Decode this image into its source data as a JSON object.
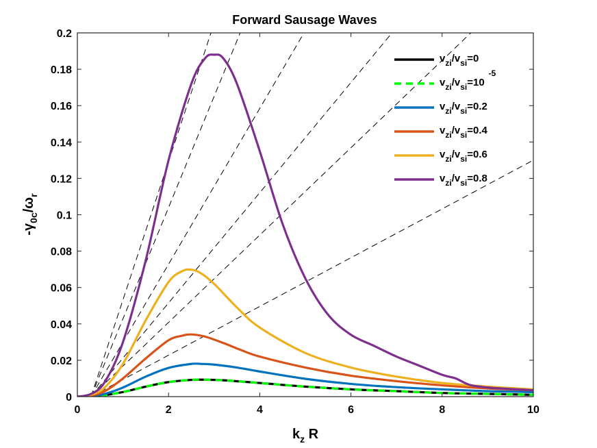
{
  "chart_data": {
    "type": "line",
    "title": "Forward Sausage Waves",
    "xlabel": "k_z R",
    "xlabel_main": "k",
    "xlabel_sub": "z",
    "xlabel_rest": " R",
    "ylabel": "-γ_0c/ω_r",
    "ylabel_main1": "-γ",
    "ylabel_sub1": "0c",
    "ylabel_main2": "/ω",
    "ylabel_sub2": "r",
    "xlim": [
      0,
      10
    ],
    "ylim": [
      0,
      0.2
    ],
    "xticks": [
      "0",
      "2",
      "4",
      "6",
      "8",
      "10"
    ],
    "xtick_values": [
      0,
      2,
      4,
      6,
      8,
      10
    ],
    "yticks": [
      "0",
      "0.02",
      "0.04",
      "0.06",
      "0.08",
      "0.1",
      "0.12",
      "0.14",
      "0.16",
      "0.18",
      "0.2"
    ],
    "ytick_values": [
      0,
      0.02,
      0.04,
      0.06,
      0.08,
      0.1,
      0.12,
      0.14,
      0.16,
      0.18,
      0.2
    ],
    "grid": false,
    "legend_position": "top-right",
    "series": [
      {
        "name": "v_zi/v_si=0",
        "leg_a": "v",
        "leg_b": "zi",
        "leg_c": "/v",
        "leg_d": "si",
        "leg_e": "=0",
        "leg_sup": "",
        "color": "#000000",
        "dashed": false,
        "x": [
          0,
          0.3,
          0.6,
          1.0,
          1.5,
          2.0,
          2.5,
          2.8,
          3.2,
          4.0,
          5.0,
          6.0,
          7.0,
          8.0,
          9.0,
          10.0
        ],
        "y": [
          0,
          0.0002,
          0.0008,
          0.0025,
          0.0055,
          0.008,
          0.0092,
          0.0093,
          0.009,
          0.0075,
          0.0055,
          0.004,
          0.003,
          0.002,
          0.0015,
          0.001
        ]
      },
      {
        "name": "v_zi/v_si=10^-5",
        "leg_a": "v",
        "leg_b": "zi",
        "leg_c": "/v",
        "leg_d": "si",
        "leg_e": "=10",
        "leg_sup": "-5",
        "color": "#00ff00",
        "dashed": true,
        "x": [
          0,
          0.3,
          0.6,
          1.0,
          1.5,
          2.0,
          2.5,
          2.8,
          3.2,
          4.0,
          5.0,
          6.0,
          7.0,
          8.0,
          9.0,
          10.0
        ],
        "y": [
          0,
          0.0002,
          0.0008,
          0.0025,
          0.0055,
          0.008,
          0.0092,
          0.0093,
          0.009,
          0.0075,
          0.0055,
          0.004,
          0.003,
          0.002,
          0.0015,
          0.001
        ]
      },
      {
        "name": "v_zi/v_si=0.2",
        "leg_a": "v",
        "leg_b": "zi",
        "leg_c": "/v",
        "leg_d": "si",
        "leg_e": "=0.2",
        "leg_sup": "",
        "color": "#0072bd",
        "dashed": false,
        "x": [
          0,
          0.3,
          0.6,
          1.0,
          1.5,
          2.0,
          2.5,
          2.7,
          3.0,
          3.5,
          4.0,
          5.0,
          6.0,
          7.0,
          8.0,
          9.0,
          10.0
        ],
        "y": [
          0,
          0.0004,
          0.0015,
          0.005,
          0.011,
          0.0158,
          0.018,
          0.018,
          0.0176,
          0.016,
          0.0138,
          0.0098,
          0.007,
          0.0052,
          0.004,
          0.003,
          0.0025
        ]
      },
      {
        "name": "v_zi/v_si=0.4",
        "leg_a": "v",
        "leg_b": "zi",
        "leg_c": "/v",
        "leg_d": "si",
        "leg_e": "=0.4",
        "leg_sup": "",
        "color": "#d95319",
        "dashed": false,
        "x": [
          0,
          0.3,
          0.6,
          1.0,
          1.5,
          2.0,
          2.3,
          2.5,
          2.8,
          3.2,
          3.6,
          4.0,
          5.0,
          6.0,
          7.0,
          8.0,
          9.0,
          10.0
        ],
        "y": [
          0,
          0.0006,
          0.003,
          0.01,
          0.021,
          0.031,
          0.0335,
          0.0342,
          0.033,
          0.0295,
          0.0255,
          0.022,
          0.016,
          0.0115,
          0.0085,
          0.0062,
          0.0045,
          0.0035
        ]
      },
      {
        "name": "v_zi/v_si=0.6",
        "leg_a": "v",
        "leg_b": "zi",
        "leg_c": "/v",
        "leg_d": "si",
        "leg_e": "=0.6",
        "leg_sup": "",
        "color": "#edb120",
        "dashed": false,
        "x": [
          0,
          0.3,
          0.6,
          1.0,
          1.5,
          2.0,
          2.3,
          2.5,
          2.7,
          3.0,
          3.5,
          4.0,
          5.0,
          6.0,
          7.0,
          8.0,
          9.0,
          10.0
        ],
        "y": [
          0,
          0.001,
          0.005,
          0.018,
          0.042,
          0.063,
          0.069,
          0.0698,
          0.068,
          0.062,
          0.049,
          0.038,
          0.024,
          0.016,
          0.011,
          0.0075,
          0.0055,
          0.004
        ]
      },
      {
        "name": "v_zi/v_si=0.8",
        "leg_a": "v",
        "leg_b": "zi",
        "leg_c": "/v",
        "leg_d": "si",
        "leg_e": "=0.8",
        "leg_sup": "",
        "color": "#7e2f8e",
        "dashed": false,
        "x": [
          0,
          0.3,
          0.6,
          1.0,
          1.5,
          2.0,
          2.5,
          2.8,
          3.0,
          3.2,
          3.5,
          4.0,
          4.5,
          5.0,
          5.5,
          6.0,
          6.5,
          7.0,
          7.5,
          8.0,
          8.3,
          8.6,
          9.0,
          9.5,
          10.0
        ],
        "y": [
          0,
          0.0015,
          0.008,
          0.03,
          0.075,
          0.13,
          0.172,
          0.186,
          0.188,
          0.186,
          0.172,
          0.135,
          0.095,
          0.065,
          0.045,
          0.034,
          0.028,
          0.022,
          0.017,
          0.012,
          0.01,
          0.0065,
          0.005,
          0.0042,
          0.0035
        ]
      }
    ],
    "reference_lines": [
      {
        "style": "dashed",
        "color": "#000000",
        "x": [
          0.3,
          10
        ],
        "y": [
          0,
          0.13
        ]
      },
      {
        "style": "dashed",
        "color": "#000000",
        "x": [
          0.3,
          8.63
        ],
        "y": [
          0,
          0.2
        ]
      },
      {
        "style": "dashed",
        "color": "#000000",
        "x": [
          0.3,
          6.9
        ],
        "y": [
          0,
          0.2
        ]
      },
      {
        "style": "dashed",
        "color": "#000000",
        "x": [
          0.3,
          4.97
        ],
        "y": [
          0,
          0.2
        ]
      },
      {
        "style": "dashed",
        "color": "#000000",
        "x": [
          0.3,
          3.57
        ],
        "y": [
          0,
          0.2
        ]
      },
      {
        "style": "dashed",
        "color": "#000000",
        "x": [
          0.3,
          2.93
        ],
        "y": [
          0,
          0.2
        ]
      }
    ]
  }
}
